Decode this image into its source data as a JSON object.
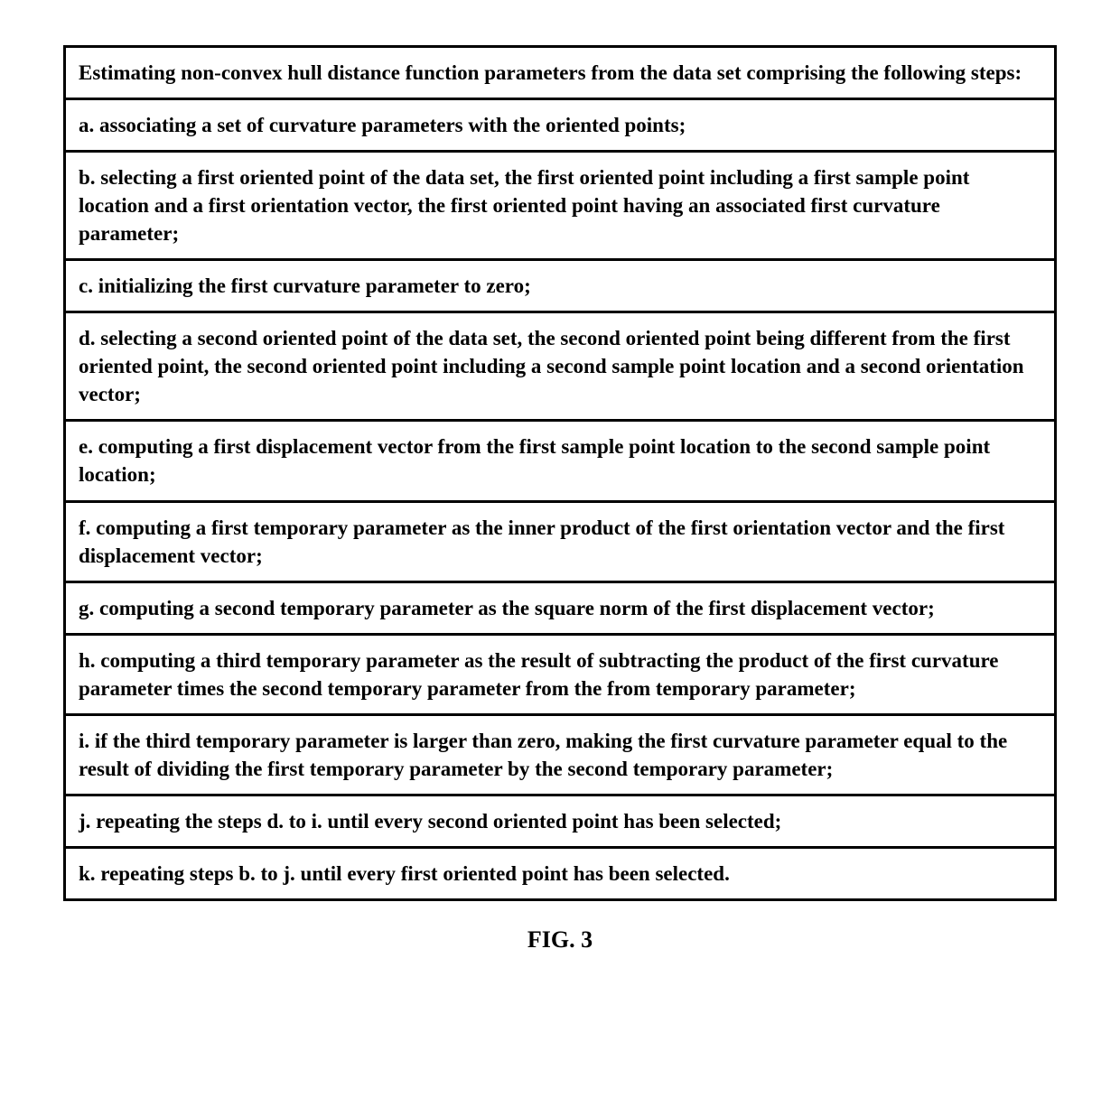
{
  "table": {
    "header": "Estimating non-convex hull distance function parameters from the data set comprising the following steps:",
    "rows": [
      "a. associating a set of curvature parameters with the oriented points;",
      "b. selecting a first oriented point of the data set, the first oriented point including a first sample point location and a first orientation vector, the first oriented point having an associated first curvature parameter;",
      "c. initializing the first curvature parameter to zero;",
      "d. selecting a second oriented point of the data set, the second oriented point being different from the first oriented point, the second oriented point including a second sample point location and a second orientation vector;",
      "e. computing a first displacement vector from the first sample point location to the second sample point location;",
      "f. computing a first temporary parameter as the inner product of the first orientation vector and the first displacement vector;",
      "g. computing a second temporary parameter as the square norm of the first displacement vector;",
      "h. computing a third temporary parameter as the result of subtracting the product of the first curvature parameter times the second temporary parameter from the from temporary parameter;",
      "i. if the third temporary parameter is larger than zero, making the first curvature parameter equal to the result of dividing the first temporary parameter by the second temporary parameter;",
      "j. repeating the steps d. to i. until every second oriented point has been selected;",
      "k. repeating steps b. to j. until every first oriented point has been selected."
    ]
  },
  "caption": "FIG. 3"
}
